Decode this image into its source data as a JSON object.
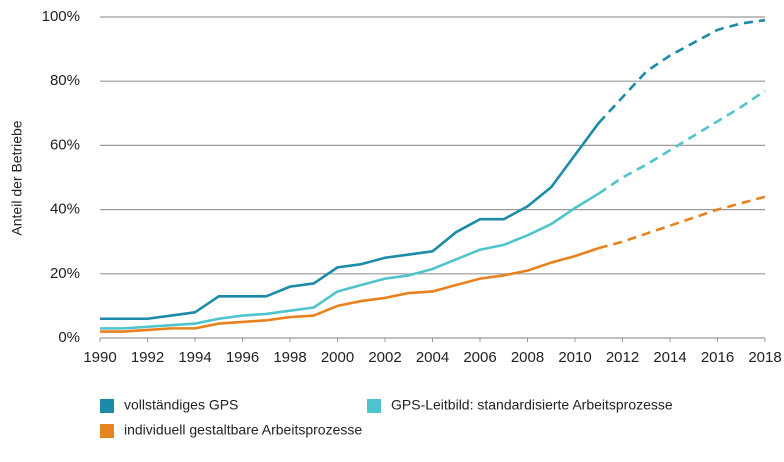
{
  "chart_data": {
    "type": "line",
    "ylabel": "Anteil der Betriebe",
    "x": [
      1990,
      1991,
      1992,
      1993,
      1994,
      1995,
      1996,
      1997,
      1998,
      1999,
      2000,
      2001,
      2002,
      2003,
      2004,
      2005,
      2006,
      2007,
      2008,
      2009,
      2010,
      2011,
      2012,
      2013,
      2014,
      2015,
      2016,
      2017,
      2018
    ],
    "series": [
      {
        "name": "vollständiges GPS",
        "color": "#1b8ba8",
        "dashed_from": 2011,
        "values": [
          6,
          6,
          6,
          7,
          8,
          13,
          13,
          13,
          16,
          17,
          22,
          23,
          25,
          26,
          27,
          33,
          37,
          37,
          41,
          47,
          57,
          67,
          75,
          83,
          88,
          92,
          96,
          98,
          99
        ]
      },
      {
        "name": "GPS-Leitbild: standardisierte Arbeitsprozesse",
        "color": "#4fc4cc",
        "dashed_from": 2011,
        "values": [
          3,
          3,
          3.5,
          4,
          4.5,
          6,
          7,
          7.5,
          8.5,
          9.5,
          14.5,
          16.5,
          18.5,
          19.5,
          21.5,
          24.5,
          27.5,
          29,
          32,
          35.5,
          40.5,
          45,
          50,
          54,
          58.5,
          63,
          67.5,
          72,
          77
        ]
      },
      {
        "name": "individuell gestaltbare Arbeitsprozesse",
        "color": "#e8821e",
        "dashed_from": 2011,
        "values": [
          2,
          2,
          2.5,
          3,
          3,
          4.5,
          5,
          5.5,
          6.5,
          7,
          10,
          11.5,
          12.5,
          14,
          14.5,
          16.5,
          18.5,
          19.5,
          21,
          23.5,
          25.5,
          28,
          30,
          32.5,
          35,
          37.5,
          40,
          42,
          44
        ]
      }
    ],
    "xlim": [
      1990,
      2018
    ],
    "xticks": [
      1990,
      1992,
      1994,
      1996,
      1998,
      2000,
      2002,
      2004,
      2006,
      2008,
      2010,
      2012,
      2014,
      2016,
      2018
    ],
    "ylim": [
      0,
      100
    ],
    "yticks": [
      {
        "value": 0,
        "label": "0%"
      },
      {
        "value": 20,
        "label": "20%"
      },
      {
        "value": 40,
        "label": "40%"
      },
      {
        "value": 60,
        "label": "60%"
      },
      {
        "value": 80,
        "label": "80%"
      },
      {
        "value": 100,
        "label": "100%"
      }
    ],
    "grid": true,
    "legend": "bottom"
  }
}
